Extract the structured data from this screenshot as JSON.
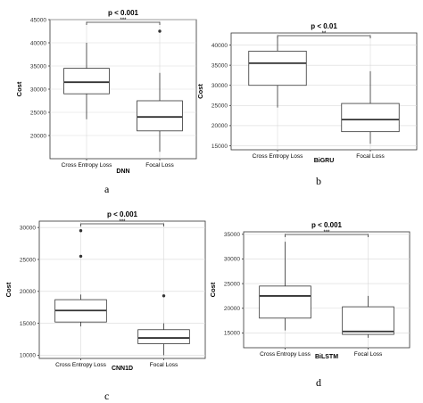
{
  "chart_data": [
    {
      "type": "box",
      "panel_letter": "a",
      "title": "p < 0.001",
      "significance": "***",
      "model_label": "DNN",
      "xlabel": "",
      "ylabel": "Cost",
      "categories": [
        "Cross Entropy Loss",
        "Focal Loss"
      ],
      "ylim": [
        15000,
        45000
      ],
      "yticks": [
        20000,
        25000,
        30000,
        35000,
        40000,
        45000
      ],
      "boxes": [
        {
          "whisker_low": 23500,
          "q1": 29000,
          "median": 31500,
          "q3": 34500,
          "whisker_high": 40000,
          "outliers": []
        },
        {
          "whisker_low": 16500,
          "q1": 21000,
          "median": 24000,
          "q3": 27500,
          "whisker_high": 33500,
          "outliers": [
            42500
          ]
        }
      ],
      "grid": true
    },
    {
      "type": "box",
      "panel_letter": "b",
      "title": "p < 0.01",
      "significance": "**",
      "model_label": "BiGRU",
      "xlabel": "",
      "ylabel": "Cost",
      "categories": [
        "Cross Entropy Loss",
        "Focal Loss"
      ],
      "ylim": [
        14000,
        43000
      ],
      "yticks": [
        15000,
        20000,
        25000,
        30000,
        35000,
        40000
      ],
      "boxes": [
        {
          "whisker_low": 24500,
          "q1": 30000,
          "median": 35500,
          "q3": 38500,
          "whisker_high": 42000,
          "outliers": []
        },
        {
          "whisker_low": 15500,
          "q1": 18500,
          "median": 21500,
          "q3": 25500,
          "whisker_high": 33500,
          "outliers": []
        }
      ],
      "grid": true
    },
    {
      "type": "box",
      "panel_letter": "c",
      "title": "p < 0.001",
      "significance": "***",
      "model_label": "CNN1D",
      "xlabel": "",
      "ylabel": "Cost",
      "categories": [
        "Cross Entropy Loss",
        "Focal Loss"
      ],
      "ylim": [
        9500,
        31000
      ],
      "yticks": [
        10000,
        15000,
        20000,
        25000,
        30000
      ],
      "boxes": [
        {
          "whisker_low": 14500,
          "q1": 15200,
          "median": 17000,
          "q3": 18700,
          "whisker_high": 19500,
          "outliers": [
            29500,
            25500
          ]
        },
        {
          "whisker_low": 10000,
          "q1": 11800,
          "median": 12700,
          "q3": 14000,
          "whisker_high": 15000,
          "outliers": [
            19300
          ]
        }
      ],
      "grid": true
    },
    {
      "type": "box",
      "panel_letter": "d",
      "title": "p < 0.001",
      "significance": "***",
      "model_label": "BiLSTM",
      "xlabel": "",
      "ylabel": "Cost",
      "categories": [
        "Cross Entropy Loss",
        "Focal Loss"
      ],
      "ylim": [
        12000,
        35500
      ],
      "yticks": [
        15000,
        20000,
        25000,
        30000,
        35000
      ],
      "boxes": [
        {
          "whisker_low": 15500,
          "q1": 18000,
          "median": 22500,
          "q3": 24500,
          "whisker_high": 33500,
          "outliers": []
        },
        {
          "whisker_low": 14000,
          "q1": 14700,
          "median": 15300,
          "q3": 20300,
          "whisker_high": 22500,
          "outliers": []
        }
      ],
      "grid": true
    }
  ]
}
